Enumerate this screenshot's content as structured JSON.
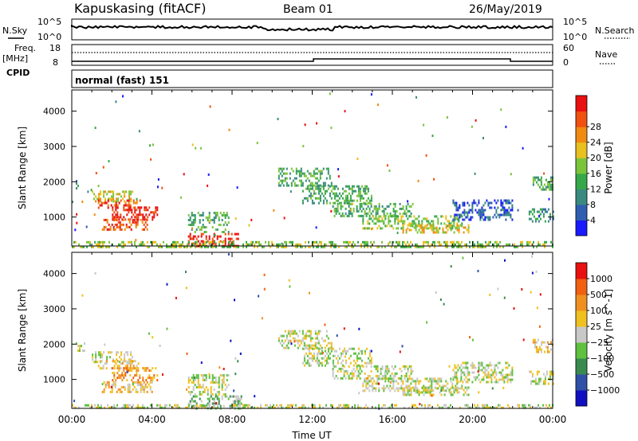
{
  "header": {
    "station": "Kapuskasing (fitACF)",
    "beam": "Beam 01",
    "date": "26/May/2019"
  },
  "top_panels": {
    "nsky_label": "N.Sky",
    "nsearch_label": "N.Search",
    "freq_label_1": "Freq.",
    "freq_label_2": "[MHz]",
    "nave_label": "Nave",
    "cpid_label": "CPID",
    "cpid_value": "normal (fast) 151",
    "noise_left_ticks": [
      "10^5",
      "10^0"
    ],
    "noise_right_ticks": [
      "10^5",
      "10^0"
    ],
    "freq_ticks": [
      "18",
      "8"
    ],
    "nave_ticks": [
      "60",
      "0"
    ]
  },
  "chart_data": [
    {
      "type": "heatmap",
      "name_note": "",
      "ylabel": "Slant Range [km]",
      "xlabel": "",
      "y_ticks": [
        1000,
        2000,
        3000,
        4000
      ],
      "ylim": [
        180,
        4600
      ],
      "xlim": [
        0,
        24
      ],
      "colorbar": {
        "label": "Power [dB]",
        "ticks": [
          "4",
          "8",
          "12",
          "16",
          "20",
          "24",
          "28"
        ],
        "colors": [
          "#1a1aff",
          "#2f5fb0",
          "#3a8a80",
          "#36a84a",
          "#7ac43c",
          "#e8c020",
          "#f08a10",
          "#f05010",
          "#e81010"
        ]
      },
      "echo_regions": [
        {
          "t0": 0.2,
          "t1": 0.5,
          "r0": 1800,
          "r1": 2050,
          "level": 2
        },
        {
          "t0": 1.0,
          "t1": 3.0,
          "r0": 1450,
          "r1": 1750,
          "level": 5
        },
        {
          "t0": 1.3,
          "t1": 3.4,
          "r0": 1250,
          "r1": 1500,
          "level": 7
        },
        {
          "t0": 2.0,
          "t1": 4.3,
          "r0": 950,
          "r1": 1300,
          "level": 8
        },
        {
          "t0": 1.5,
          "t1": 3.8,
          "r0": 650,
          "r1": 950,
          "level": 7
        },
        {
          "t0": 5.8,
          "t1": 7.8,
          "r0": 600,
          "r1": 1150,
          "level": 3
        },
        {
          "t0": 5.8,
          "t1": 8.5,
          "r0": 180,
          "r1": 550,
          "level": 8
        },
        {
          "t0": 0.0,
          "t1": 24.0,
          "r0": 180,
          "r1": 320,
          "level": 4
        },
        {
          "t0": 10.3,
          "t1": 13.0,
          "r0": 1900,
          "r1": 2400,
          "level": 3
        },
        {
          "t0": 11.5,
          "t1": 15.0,
          "r0": 1400,
          "r1": 1900,
          "level": 3
        },
        {
          "t0": 13.0,
          "t1": 17.0,
          "r0": 1050,
          "r1": 1400,
          "level": 3
        },
        {
          "t0": 14.5,
          "t1": 19.5,
          "r0": 700,
          "r1": 1050,
          "level": 4
        },
        {
          "t0": 16.5,
          "t1": 19.8,
          "r0": 550,
          "r1": 800,
          "level": 5
        },
        {
          "t0": 19.0,
          "t1": 22.0,
          "r0": 950,
          "r1": 1500,
          "level": 1
        },
        {
          "t0": 22.8,
          "t1": 24.0,
          "r0": 850,
          "r1": 1250,
          "level": 2
        },
        {
          "t0": 23.0,
          "t1": 24.0,
          "r0": 1800,
          "r1": 2150,
          "level": 3
        }
      ]
    },
    {
      "type": "heatmap",
      "ylabel": "Slant Range [km]",
      "xlabel": "Time UT",
      "x_ticks": [
        "00:00",
        "04:00",
        "08:00",
        "12:00",
        "16:00",
        "20:00",
        "00:00"
      ],
      "y_ticks": [
        1000,
        2000,
        3000,
        4000
      ],
      "ylim": [
        180,
        4600
      ],
      "xlim": [
        0,
        24
      ],
      "colorbar": {
        "label": "Velocity [m s^-1]",
        "ticks": [
          "1000",
          "500",
          "100",
          "25",
          "−25",
          "−100",
          "−500",
          "−1000"
        ],
        "colors": [
          "#1010c0",
          "#3050a8",
          "#3a8a50",
          "#60c040",
          "#c8c8c8",
          "#f0c020",
          "#f09020",
          "#f06010",
          "#e81010"
        ]
      },
      "echo_regions": [
        {
          "t0": 0.2,
          "t1": 0.6,
          "r0": 1800,
          "r1": 2050,
          "level": 4
        },
        {
          "t0": 1.0,
          "t1": 3.0,
          "r0": 1500,
          "r1": 1800,
          "level": 4
        },
        {
          "t0": 1.3,
          "t1": 3.3,
          "r0": 1300,
          "r1": 1550,
          "level": 5
        },
        {
          "t0": 2.0,
          "t1": 4.3,
          "r0": 950,
          "r1": 1350,
          "level": 6
        },
        {
          "t0": 1.5,
          "t1": 4.0,
          "r0": 650,
          "r1": 950,
          "level": 5
        },
        {
          "t0": 5.8,
          "t1": 7.8,
          "r0": 600,
          "r1": 1150,
          "level": 4
        },
        {
          "t0": 5.8,
          "t1": 8.5,
          "r0": 180,
          "r1": 550,
          "level": 3
        },
        {
          "t0": 0.0,
          "t1": 24.0,
          "r0": 180,
          "r1": 300,
          "level": 4
        },
        {
          "t0": 10.3,
          "t1": 13.0,
          "r0": 1900,
          "r1": 2400,
          "level": 4
        },
        {
          "t0": 11.5,
          "t1": 15.0,
          "r0": 1400,
          "r1": 1900,
          "level": 4
        },
        {
          "t0": 13.0,
          "t1": 17.0,
          "r0": 1050,
          "r1": 1400,
          "level": 4
        },
        {
          "t0": 14.5,
          "t1": 19.5,
          "r0": 700,
          "r1": 1050,
          "level": 4
        },
        {
          "t0": 16.5,
          "t1": 19.8,
          "r0": 550,
          "r1": 800,
          "level": 4
        },
        {
          "t0": 19.0,
          "t1": 22.0,
          "r0": 950,
          "r1": 1500,
          "level": 4
        },
        {
          "t0": 22.8,
          "t1": 24.0,
          "r0": 850,
          "r1": 1250,
          "level": 4
        },
        {
          "t0": 23.0,
          "t1": 24.0,
          "r0": 1800,
          "r1": 2150,
          "level": 5
        }
      ]
    }
  ]
}
